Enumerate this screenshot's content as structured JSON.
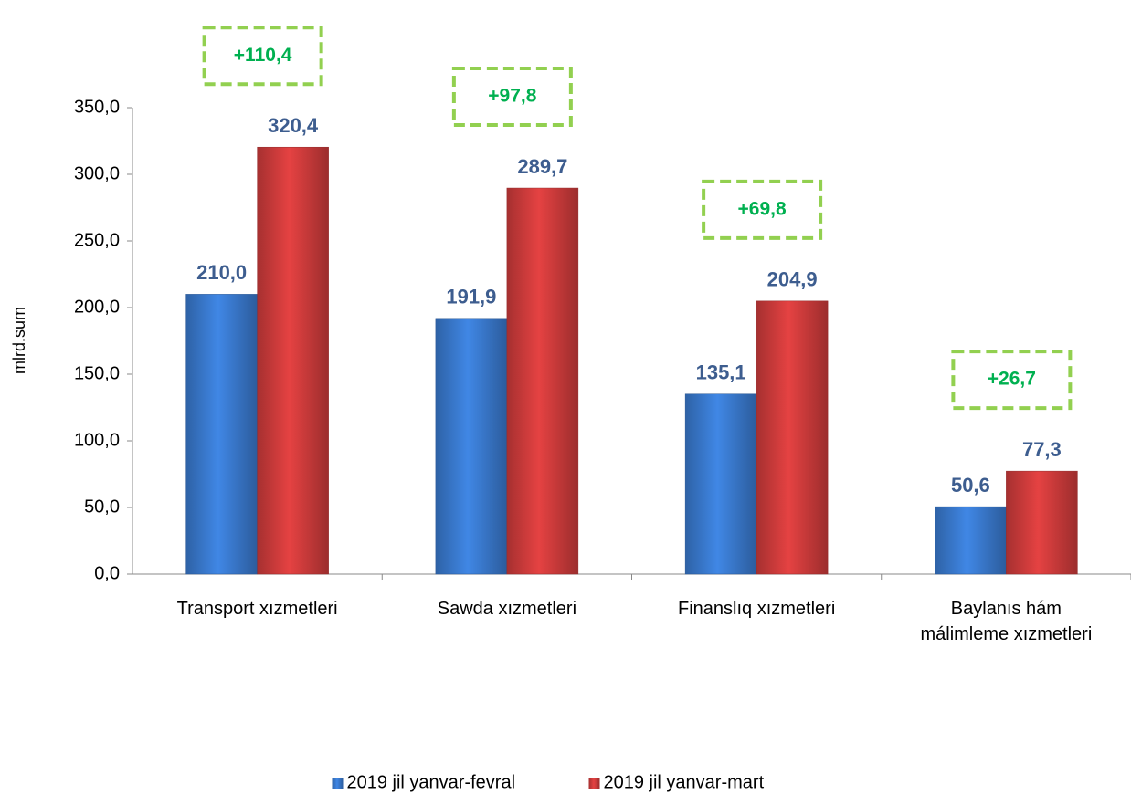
{
  "chart_data": {
    "type": "bar",
    "y_label": "mlrd.sum",
    "categories": [
      "Transport  xızmetleri",
      "Sawda  xızmetleri",
      "Finanslıq  xızmetleri",
      "Baylanıs hám\nmálimleme xızmetleri"
    ],
    "series": [
      {
        "name": "2019 jil yanvar-fevral",
        "color": "#3a7bd0",
        "values": [
          210.0,
          191.9,
          135.1,
          50.6
        ],
        "value_labels": [
          "210,0",
          "191,9",
          "135,1",
          "50,6"
        ]
      },
      {
        "name": "2019 jil yanvar-mart",
        "color": "#d03c3c",
        "values": [
          320.4,
          289.7,
          204.9,
          77.3
        ],
        "value_labels": [
          "320,4",
          "289,7",
          "204,9",
          "77,3"
        ]
      }
    ],
    "annotations": [
      "+110,4",
      "+97,8",
      "+69,8",
      "+26,7"
    ],
    "ylim": [
      0,
      350
    ],
    "yticks": [
      {
        "value": 0,
        "label": "0,0"
      },
      {
        "value": 50,
        "label": "50,0"
      },
      {
        "value": 100,
        "label": "100,0"
      },
      {
        "value": 150,
        "label": "150,0"
      },
      {
        "value": 200,
        "label": "200,0"
      },
      {
        "value": 250,
        "label": "250,0"
      },
      {
        "value": 300,
        "label": "300,0"
      },
      {
        "value": 350,
        "label": "350,0"
      }
    ],
    "legend": "bottom"
  }
}
